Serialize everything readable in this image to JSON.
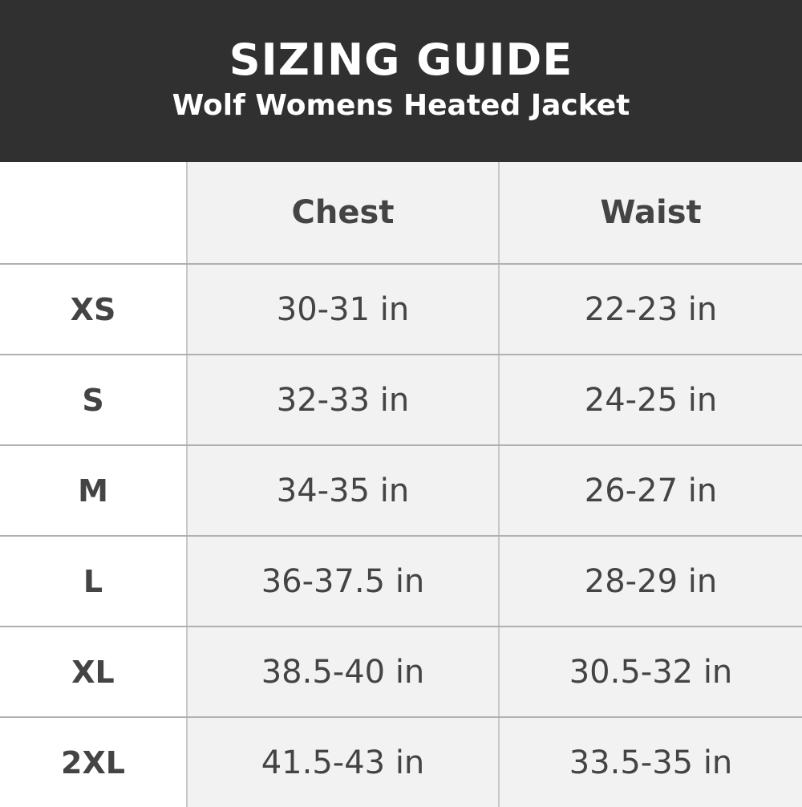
{
  "header": {
    "title": "SIZING GUIDE",
    "subtitle": "Wolf Womens Heated Jacket"
  },
  "table": {
    "columns": [
      "",
      "Chest",
      "Waist"
    ],
    "rows": [
      {
        "size": "XS",
        "chest": "30-31 in",
        "waist": "22-23 in"
      },
      {
        "size": "S",
        "chest": "32-33 in",
        "waist": "24-25 in"
      },
      {
        "size": "M",
        "chest": "34-35 in",
        "waist": "26-27 in"
      },
      {
        "size": "L",
        "chest": "36-37.5 in",
        "waist": "28-29 in"
      },
      {
        "size": "XL",
        "chest": "38.5-40 in",
        "waist": "30.5-32 in"
      },
      {
        "size": "2XL",
        "chest": "41.5-43 in",
        "waist": "33.5-35 in"
      }
    ]
  },
  "colors": {
    "header_bg": "#303030",
    "cell_bg": "#f2f2f2",
    "text": "#444444"
  }
}
